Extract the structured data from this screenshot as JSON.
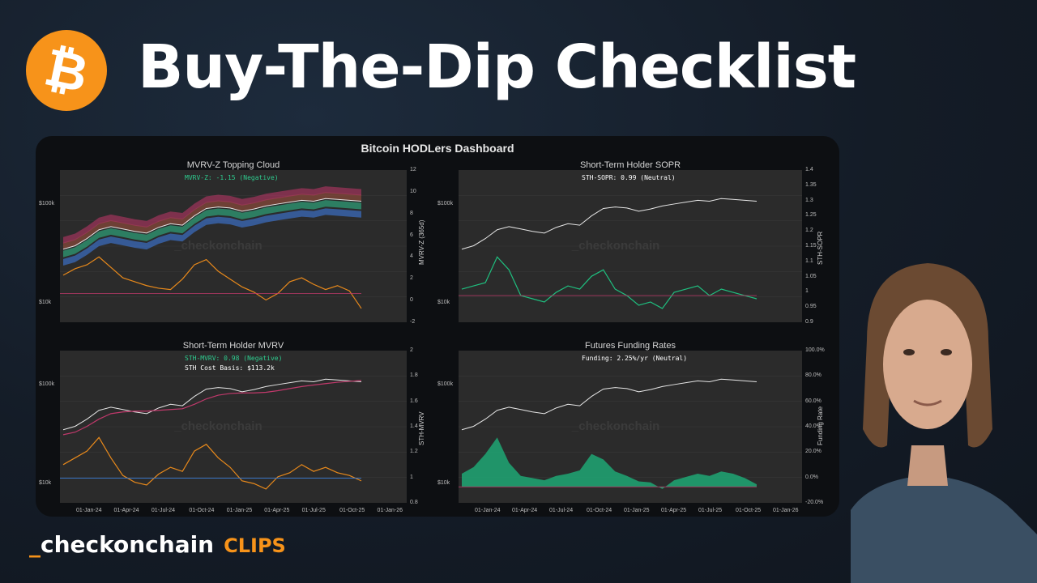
{
  "header": {
    "title": "Buy-The-Dip Checklist",
    "logo_icon": "bitcoin-icon",
    "logo_color": "#f7931a"
  },
  "dashboard": {
    "title": "Bitcoin HODLers Dashboard",
    "watermark": "_checkonchain",
    "left_price_ticks": {
      "top": "$100k",
      "bottom": "$10k"
    },
    "date_ticks": [
      "01-Jan-24",
      "01-Apr-24",
      "01-Jul-24",
      "01-Oct-24",
      "01-Jan-25",
      "01-Apr-25",
      "01-Jul-25",
      "01-Oct-25",
      "01-Jan-26"
    ]
  },
  "chart_data": [
    {
      "type": "line",
      "title": "MVRV-Z Topping Cloud",
      "annotation": "MVRV-Z: -1.15 (Negative)",
      "annotation_color": "#2ecc8f",
      "ylabel": "MVRV-Z (365d)",
      "y2_ticks": [
        "12",
        "10",
        "8",
        "6",
        "4",
        "2",
        "0",
        "-2"
      ],
      "series": [
        {
          "name": "price",
          "color": "#e6e6e6",
          "values": [
            42,
            45,
            52,
            62,
            66,
            63,
            60,
            58,
            65,
            70,
            68,
            82,
            95,
            98,
            96,
            90,
            94,
            100,
            104,
            108,
            112,
            110,
            116,
            114,
            112,
            110
          ]
        },
        {
          "name": "MVRV-Z",
          "color": "#e8891b",
          "values": [
            1.4,
            1.9,
            2.2,
            2.8,
            2.0,
            1.2,
            0.9,
            0.6,
            0.4,
            0.3,
            1.1,
            2.2,
            2.6,
            1.7,
            1.1,
            0.5,
            0.1,
            -0.5,
            0.0,
            0.9,
            1.2,
            0.7,
            0.3,
            0.6,
            0.2,
            -1.15
          ]
        }
      ]
    },
    {
      "type": "line",
      "title": "Short-Term Holder SOPR",
      "annotation": "STH-SOPR: 0.99 (Neutral)",
      "annotation_color": "#ffffff",
      "ylabel": "STH-SOPR",
      "y2_ticks": [
        "1.4",
        "1.35",
        "1.3",
        "1.25",
        "1.2",
        "1.15",
        "1.1",
        "1.05",
        "1",
        "0.95",
        "0.9"
      ],
      "series": [
        {
          "name": "price",
          "color": "#e6e6e6",
          "values": [
            42,
            45,
            52,
            62,
            66,
            63,
            60,
            58,
            65,
            70,
            68,
            82,
            95,
            98,
            96,
            90,
            94,
            100,
            104,
            108,
            112,
            110,
            116,
            114,
            112,
            110
          ]
        },
        {
          "name": "STH-SOPR",
          "color": "#1fbf7f",
          "values": [
            1.02,
            1.03,
            1.04,
            1.12,
            1.08,
            1.0,
            0.99,
            0.98,
            1.01,
            1.03,
            1.02,
            1.06,
            1.08,
            1.02,
            1.0,
            0.97,
            0.98,
            0.96,
            1.01,
            1.02,
            1.03,
            1.0,
            1.02,
            1.01,
            1.0,
            0.99
          ]
        }
      ]
    },
    {
      "type": "line",
      "title": "Short-Term Holder MVRV",
      "annotation": "STH-MVRV: 0.98 (Negative)",
      "annotation_color": "#2ecc8f",
      "annotation2": "STH Cost Basis: $113.2k",
      "ylabel": "STH-MVRV",
      "y2_ticks": [
        "2",
        "1.8",
        "1.6",
        "1.4",
        "1.2",
        "1",
        "0.8"
      ],
      "series": [
        {
          "name": "price",
          "color": "#e6e6e6",
          "values": [
            42,
            45,
            52,
            62,
            66,
            63,
            60,
            58,
            65,
            70,
            68,
            82,
            95,
            98,
            96,
            90,
            94,
            100,
            104,
            108,
            112,
            110,
            116,
            114,
            112,
            110
          ]
        },
        {
          "name": "STH cost basis",
          "color": "#c0396b",
          "values": [
            38,
            40,
            45,
            52,
            58,
            60,
            61,
            61,
            62,
            63,
            64,
            70,
            78,
            84,
            87,
            88,
            88,
            89,
            92,
            96,
            100,
            103,
            106,
            109,
            111,
            113
          ]
        },
        {
          "name": "STH-MVRV",
          "color": "#e8891b",
          "values": [
            1.1,
            1.15,
            1.2,
            1.3,
            1.15,
            1.02,
            0.97,
            0.95,
            1.03,
            1.08,
            1.05,
            1.2,
            1.25,
            1.15,
            1.08,
            0.98,
            0.96,
            0.92,
            1.01,
            1.04,
            1.1,
            1.05,
            1.08,
            1.04,
            1.02,
            0.98
          ]
        }
      ]
    },
    {
      "type": "area",
      "title": "Futures Funding Rates",
      "annotation": "Funding: 2.25%/yr (Neutral)",
      "annotation_color": "#ffffff",
      "ylabel": "Funding Rate",
      "y2_ticks": [
        "100.0%",
        "80.0%",
        "60.0%",
        "40.0%",
        "20.0%",
        "0.0%",
        "-20.0%"
      ],
      "series": [
        {
          "name": "price",
          "color": "#e6e6e6",
          "values": [
            42,
            45,
            52,
            62,
            66,
            63,
            60,
            58,
            65,
            70,
            68,
            82,
            95,
            98,
            96,
            90,
            94,
            100,
            104,
            108,
            112,
            110,
            116,
            114,
            112,
            110
          ]
        },
        {
          "name": "Funding Rate",
          "color": "#1fa774",
          "values": [
            12,
            18,
            30,
            45,
            22,
            10,
            8,
            6,
            10,
            12,
            15,
            30,
            25,
            14,
            10,
            5,
            4,
            -2,
            6,
            9,
            12,
            10,
            14,
            12,
            8,
            2.25
          ]
        }
      ]
    }
  ],
  "footer": {
    "brand_underscore": "_",
    "brand_name": "checkonchain",
    "brand_suffix": "CLIPS"
  }
}
